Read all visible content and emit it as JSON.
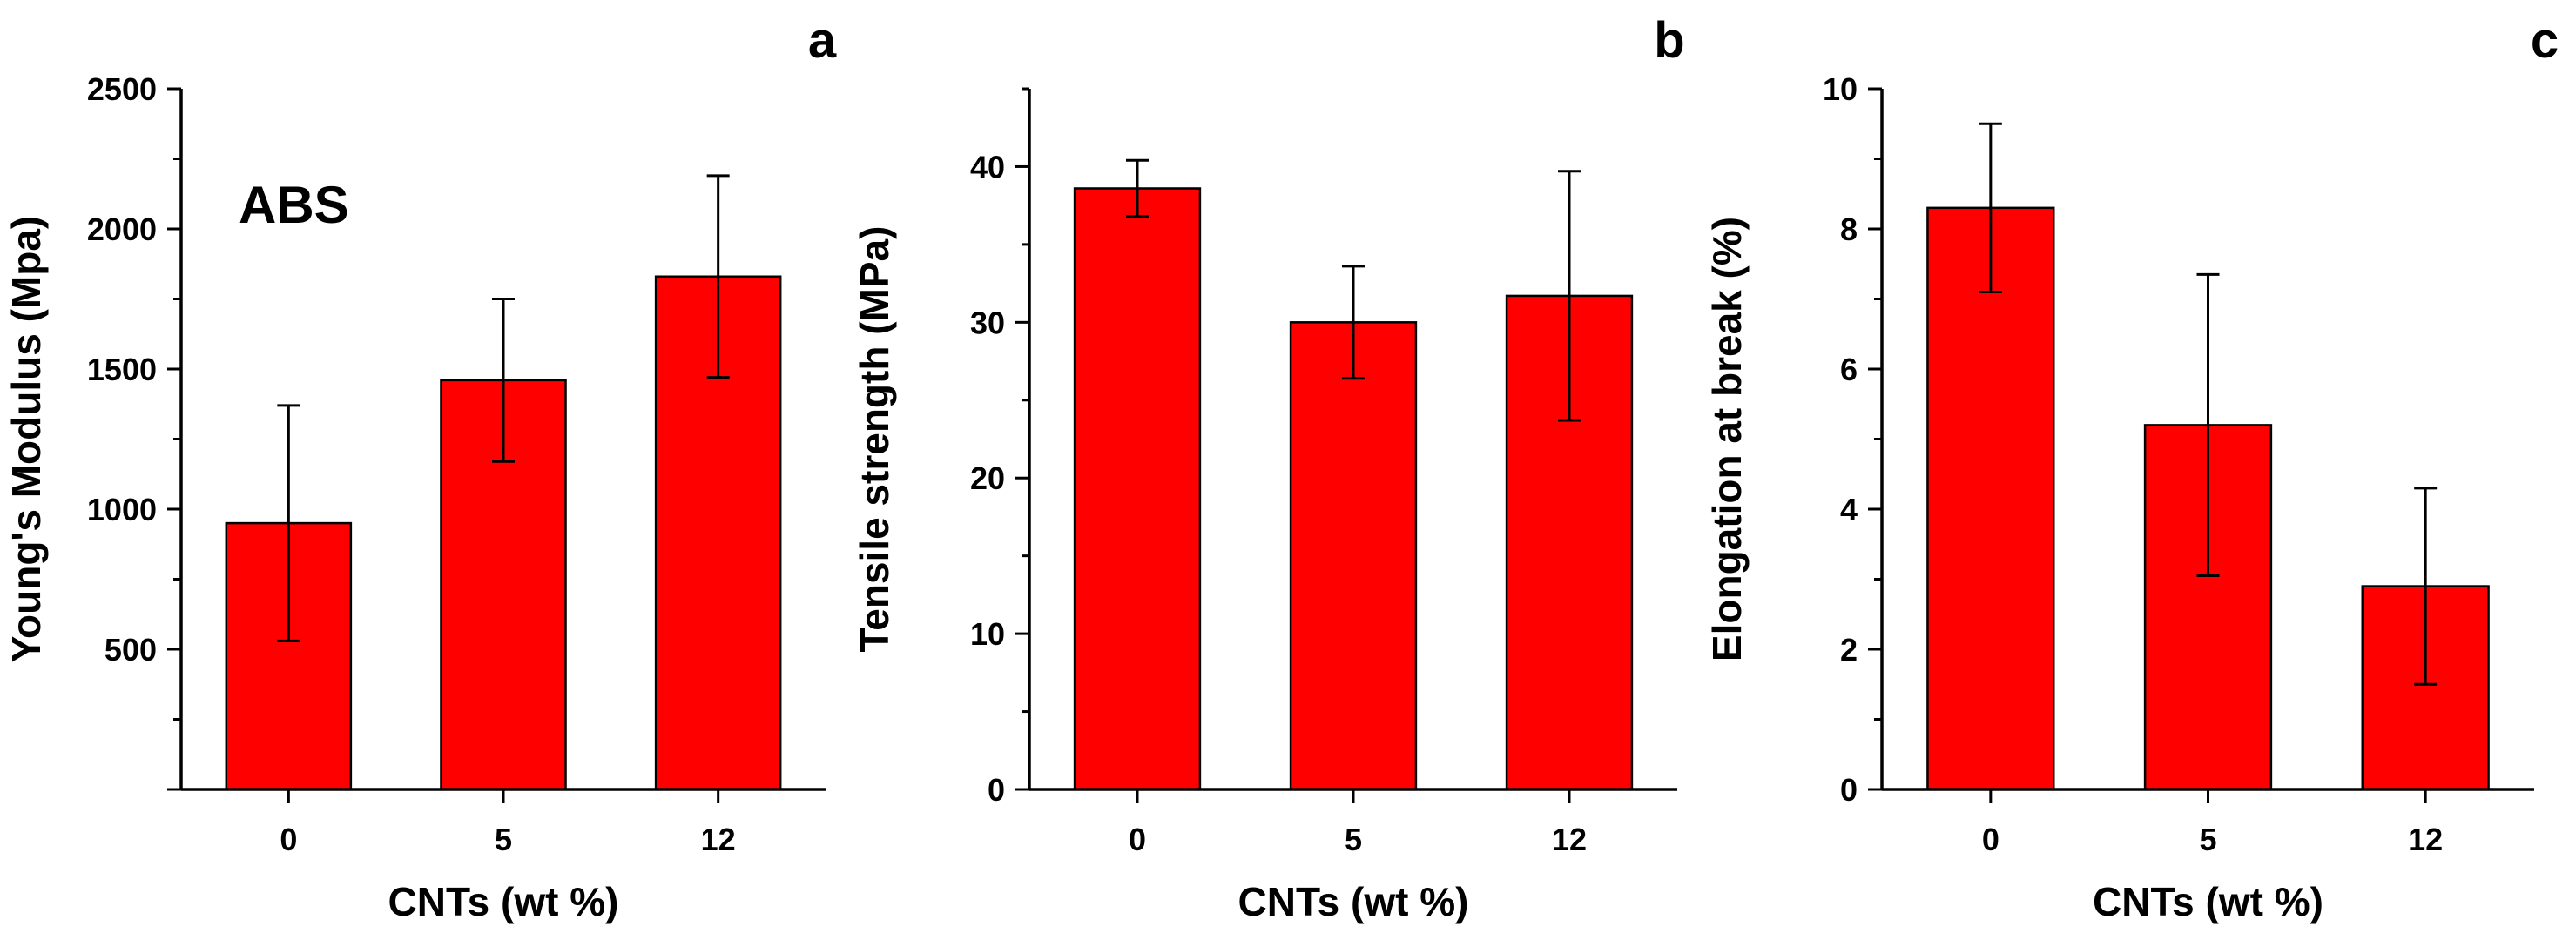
{
  "chart_data": [
    {
      "type": "bar",
      "panel_label": "a",
      "annotation": "ABS",
      "categories": [
        "0",
        "5",
        "12"
      ],
      "values": [
        950,
        1460,
        1830
      ],
      "error": [
        420,
        290,
        360
      ],
      "xlabel": "CNTs (wt %)",
      "ylabel": "Young's Modulus (Mpa)",
      "ylim": [
        0,
        2500
      ],
      "yticks": [
        "500",
        "1000",
        "1500",
        "2000",
        "2500"
      ],
      "bar_color": "#ff0000",
      "grid": false
    },
    {
      "type": "bar",
      "panel_label": "b",
      "annotation": "",
      "categories": [
        "0",
        "5",
        "12"
      ],
      "values": [
        38.6,
        30.0,
        31.7
      ],
      "error": [
        1.8,
        3.6,
        8.0
      ],
      "xlabel": "CNTs (wt %)",
      "ylabel": "Tensile strength (MPa)",
      "ylim": [
        0,
        45
      ],
      "yticks": [
        "0",
        "10",
        "20",
        "30",
        "40"
      ],
      "bar_color": "#ff0000",
      "grid": false
    },
    {
      "type": "bar",
      "panel_label": "c",
      "annotation": "",
      "categories": [
        "0",
        "5",
        "12"
      ],
      "values": [
        8.3,
        5.2,
        2.9
      ],
      "error": [
        1.2,
        2.15,
        1.4
      ],
      "xlabel": "CNTs (wt %)",
      "ylabel": "Elongation at break (%)",
      "ylim": [
        0,
        10
      ],
      "yticks": [
        "0",
        "2",
        "4",
        "6",
        "8",
        "10"
      ],
      "bar_color": "#ff0000",
      "grid": false
    }
  ]
}
